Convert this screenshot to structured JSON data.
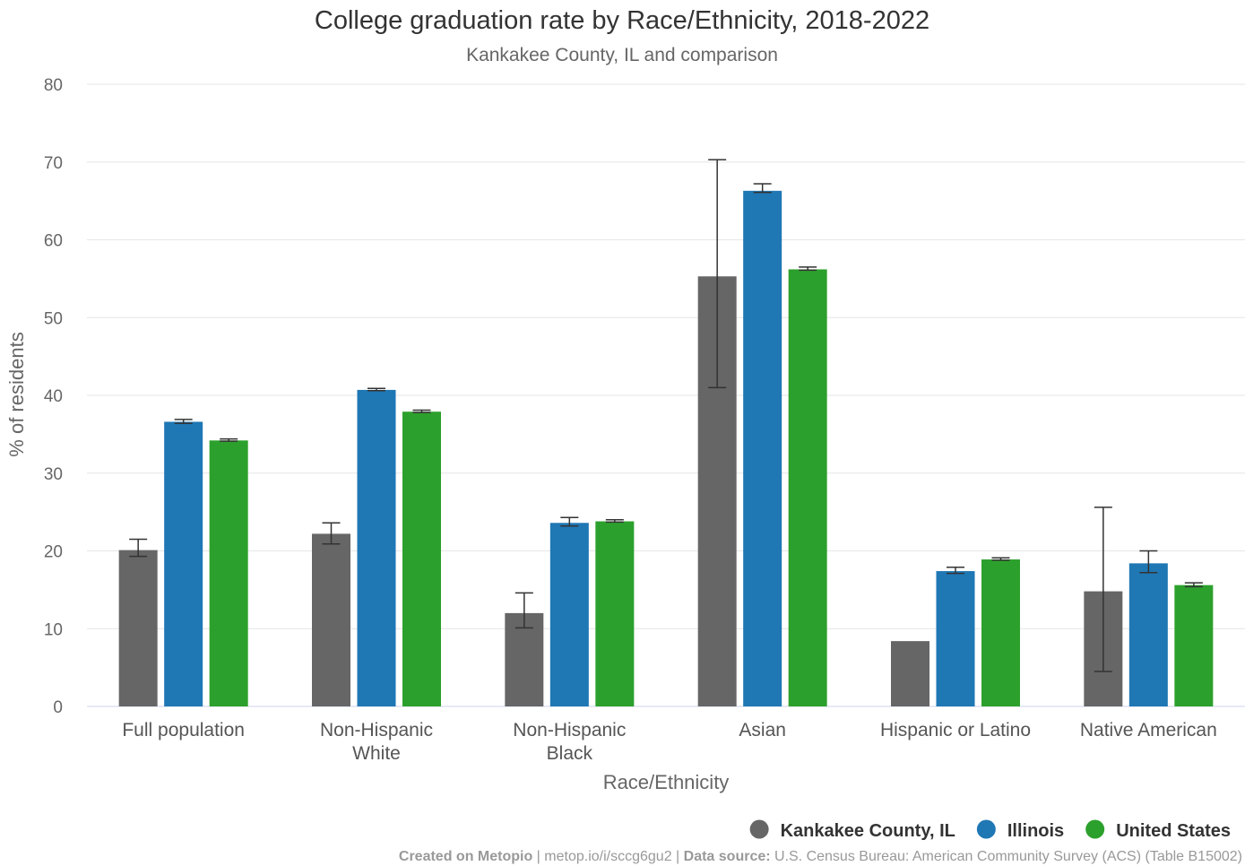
{
  "chart_data": {
    "type": "bar",
    "title": "College graduation rate by Race/Ethnicity, 2018-2022",
    "subtitle": "Kankakee County, IL and comparison",
    "xlabel": "Race/Ethnicity",
    "ylabel": "% of residents",
    "ylim": [
      0,
      80
    ],
    "yticks": [
      0,
      10,
      20,
      30,
      40,
      50,
      60,
      70,
      80
    ],
    "grid": true,
    "legend_position": "bottom-right",
    "categories": [
      [
        "Full population"
      ],
      [
        "Non-Hispanic",
        "White"
      ],
      [
        "Non-Hispanic",
        "Black"
      ],
      [
        "Asian"
      ],
      [
        "Hispanic or Latino"
      ],
      [
        "Native American"
      ]
    ],
    "series": [
      {
        "name": "Kankakee County, IL",
        "color": "#666666",
        "values": [
          20.1,
          22.2,
          12.0,
          55.3,
          8.4,
          14.8
        ],
        "error_low": [
          19.3,
          20.9,
          10.1,
          41.0,
          null,
          4.5
        ],
        "error_high": [
          21.5,
          23.6,
          14.6,
          70.3,
          null,
          25.6
        ]
      },
      {
        "name": "Illinois",
        "color": "#1f77b4",
        "values": [
          36.6,
          40.7,
          23.6,
          66.3,
          17.4,
          18.4
        ],
        "error_low": [
          36.4,
          40.6,
          23.2,
          66.1,
          17.1,
          17.2
        ],
        "error_high": [
          36.9,
          40.9,
          24.3,
          67.2,
          17.9,
          20.0
        ]
      },
      {
        "name": "United States",
        "color": "#2ca02c",
        "values": [
          34.2,
          37.9,
          23.8,
          56.2,
          18.9,
          15.6
        ],
        "error_low": [
          34.1,
          37.8,
          23.7,
          56.1,
          18.8,
          15.4
        ],
        "error_high": [
          34.4,
          38.1,
          24.0,
          56.5,
          19.1,
          15.9
        ]
      }
    ]
  },
  "credits": {
    "created_label": "Created on Metopio",
    "separator": " | ",
    "link": "metop.io/i/sccg6gu2",
    "source_label": "Data source:",
    "source_text": " U.S. Census Bureau: American Community Survey (ACS) (Table B15002)"
  }
}
